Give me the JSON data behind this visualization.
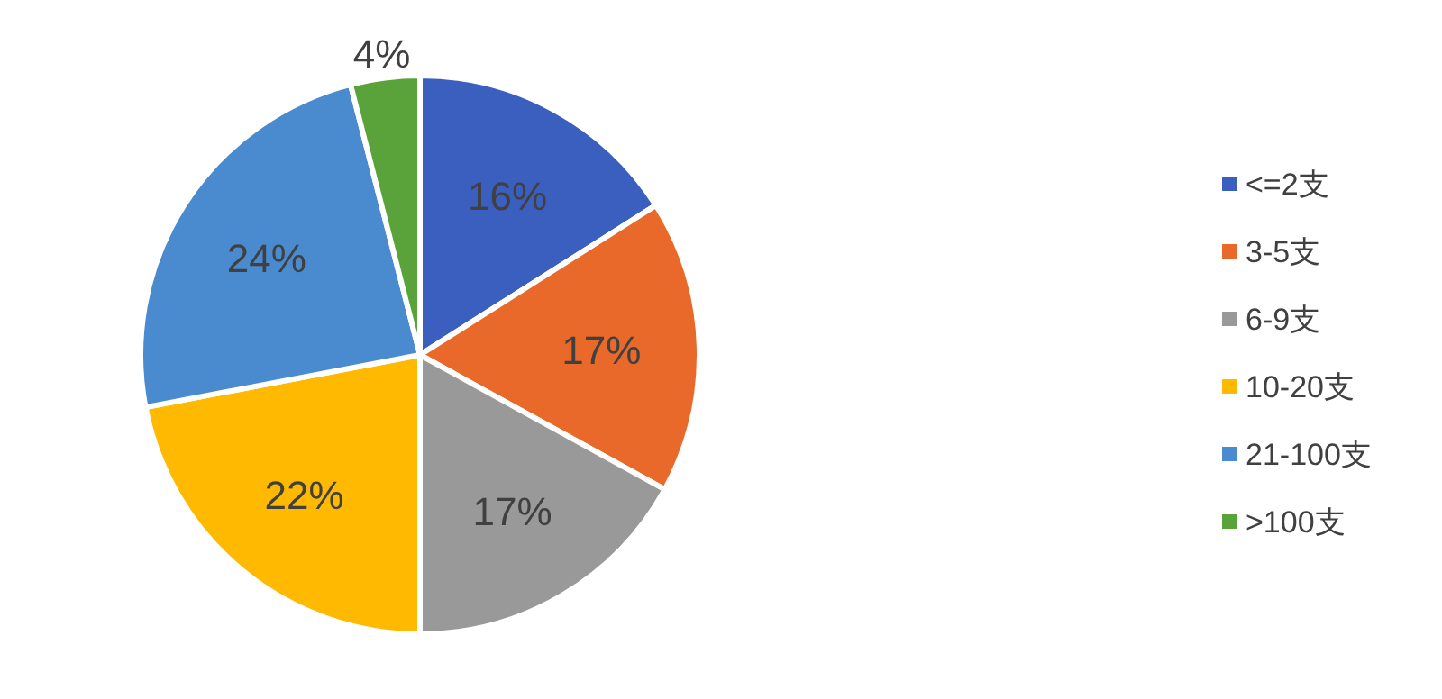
{
  "chart_data": {
    "type": "pie",
    "categories": [
      "<=2支",
      "3-5支",
      "6-9支",
      "10-20支",
      "21-100支",
      ">100支"
    ],
    "values": [
      16,
      17,
      17,
      22,
      24,
      4
    ],
    "colors": [
      "#3b5fbf",
      "#e8692a",
      "#999999",
      "#ffb900",
      "#4a8bd0",
      "#5aa33a"
    ],
    "value_labels": [
      "16%",
      "17%",
      "17%",
      "22%",
      "24%",
      "4%"
    ],
    "legend": "right"
  }
}
